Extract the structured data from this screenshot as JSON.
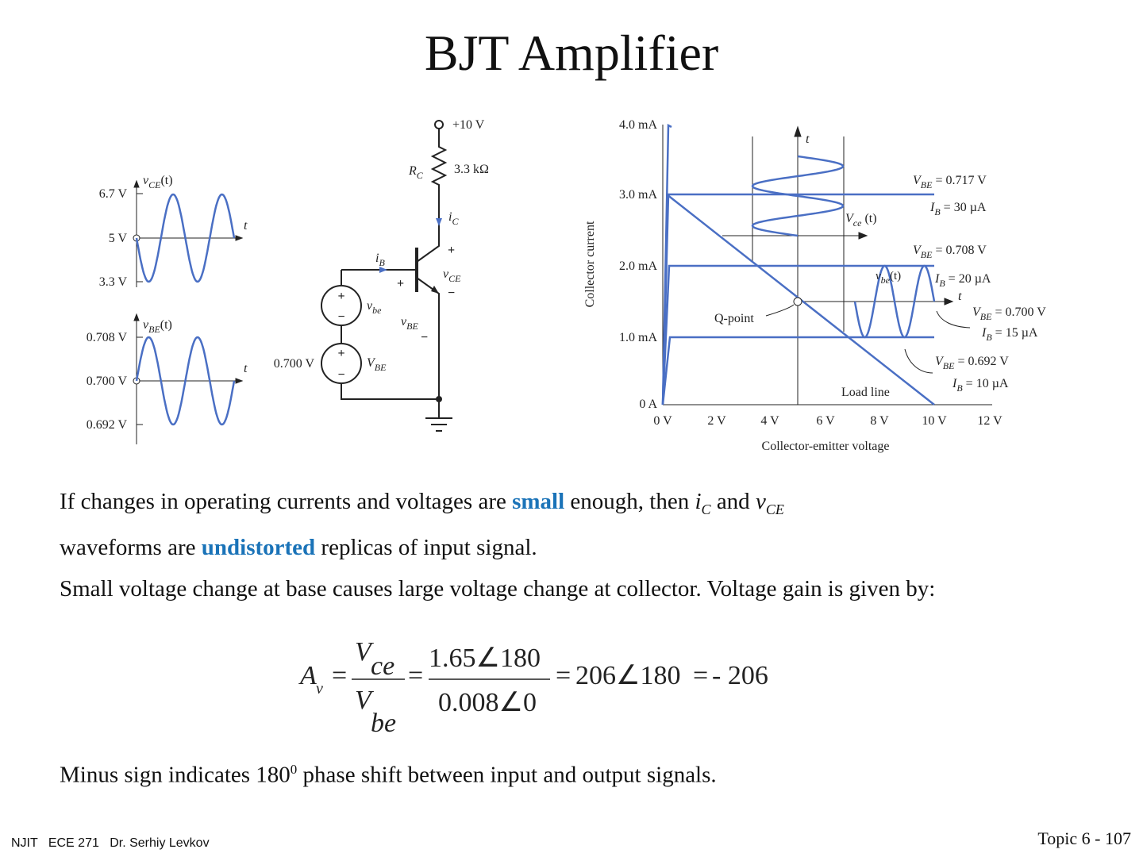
{
  "title": "BJT Amplifier",
  "waveforms": {
    "vce": {
      "label": {
        "sym": "v",
        "sub": "CE",
        "arg": "(t)"
      },
      "ticks": [
        "6.7 V",
        "5 V",
        "3.3 V"
      ],
      "axis": "t"
    },
    "vbe": {
      "label": {
        "sym": "v",
        "sub": "BE",
        "arg": "(t)"
      },
      "ticks": [
        "0.708 V",
        "0.700 V",
        "0.692 V"
      ],
      "axis": "t"
    }
  },
  "circuit": {
    "supply": "+10 V",
    "resistor": {
      "sym": "R",
      "sub": "C",
      "value": "3.3 kΩ"
    },
    "ic": {
      "sym": "i",
      "sub": "C"
    },
    "ib": {
      "sym": "i",
      "sub": "B"
    },
    "vce": {
      "plus": "+",
      "sym": "v",
      "sub": "CE",
      "minus": "−"
    },
    "vbe_out": {
      "plus": "+",
      "sym": "v",
      "sub": "BE",
      "minus": "−"
    },
    "source_ac": {
      "plus": "+",
      "minus": "−",
      "sym": "v",
      "sub": "be"
    },
    "source_dc": {
      "plus": "+",
      "minus": "−",
      "value": "0.700 V",
      "sym": "V",
      "sub": "BE"
    }
  },
  "characteristics": {
    "y_label": "Collector current",
    "x_label": "Collector-emitter voltage",
    "yticks": [
      "4.0 mA",
      "3.0 mA",
      "2.0 mA",
      "1.0 mA",
      "0 A"
    ],
    "xticks": [
      "0 V",
      "2 V",
      "4 V",
      "6 V",
      "8 V",
      "10 V",
      "12 V"
    ],
    "time_axis_1": "t",
    "time_axis_2": "t",
    "vce_wave": {
      "sym": "V",
      "sub": "ce",
      "arg": " (t)"
    },
    "vbe_wave": {
      "sym": "v",
      "sub": "be",
      "arg": "(t)"
    },
    "q_point": "Q-point",
    "load_line": "Load line",
    "curves": [
      {
        "vbe": {
          "sym": "V",
          "sub": "BE",
          "value": " = 0.717 V"
        },
        "ib": {
          "sym": "I",
          "sub": "B",
          "value": " = 30 µA"
        }
      },
      {
        "vbe": {
          "sym": "V",
          "sub": "BE",
          "value": " = 0.708 V"
        },
        "ib": {
          "sym": "I",
          "sub": "B",
          "value": " = 20 µA"
        }
      },
      {
        "vbe": {
          "sym": "V",
          "sub": "BE",
          "value": " = 0.700 V"
        },
        "ib": {
          "sym": "I",
          "sub": "B",
          "value": " = 15 µA"
        }
      },
      {
        "vbe": {
          "sym": "V",
          "sub": "BE",
          "value": " = 0.692 V"
        },
        "ib": {
          "sym": "I",
          "sub": "B",
          "value": " = 10 µA"
        }
      }
    ]
  },
  "p1": {
    "t1": "If changes in operating currents and voltages are ",
    "em1": "small",
    "t2": " enough, then ",
    "ic": "i",
    "ic_sub": "C",
    "t3": " and ",
    "vce": "v",
    "vce_sub": "CE",
    "t4": "waveforms are ",
    "em2": "undistorted",
    "t5": " replicas of input signal."
  },
  "p2": "Small voltage change at base causes large voltage change at collector. Voltage gain is given by:",
  "equation": {
    "lhs": "A",
    "lhs_sub": "v",
    "eq1": "=",
    "num_sym": "V",
    "num_sub": "ce",
    "den_sym": "V",
    "den_sub": "be",
    "eq2": "=",
    "num2": "1.65∠180",
    "den2": "0.008∠0",
    "eq3": "=",
    "r1": "206∠180",
    "eq4": "=",
    "r2": "- 206"
  },
  "p3": {
    "t1": "Minus sign indicates 180",
    "sup": "0",
    "t2": " phase shift between input and output signals."
  },
  "footer": {
    "left": "NJIT   ECE 271   Dr. Serhiy Levkov",
    "right": "Topic 6 - 107"
  }
}
